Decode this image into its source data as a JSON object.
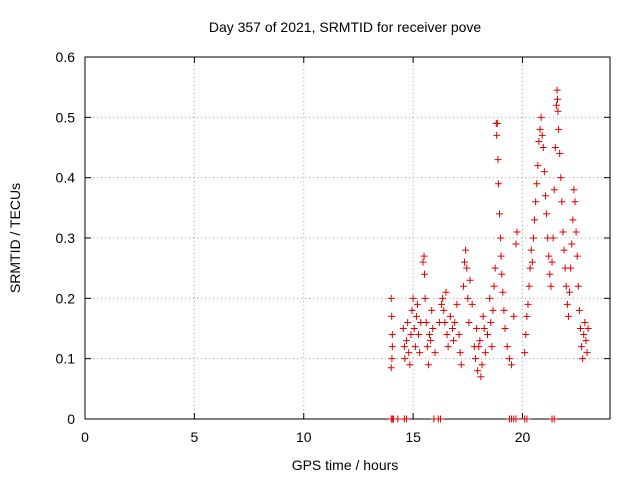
{
  "chart_data": {
    "type": "scatter",
    "title": "Day 357 of 2021, SRMTID for receiver pove",
    "xlabel": "GPS time / hours",
    "ylabel": "SRMTID / TECUs",
    "xlim": [
      0,
      24
    ],
    "ylim": [
      0,
      0.6
    ],
    "xticks": [
      0,
      5,
      10,
      15,
      20
    ],
    "xtick_labels": [
      "0",
      "5",
      "10",
      "15",
      "20"
    ],
    "yticks": [
      0,
      0.1,
      0.2,
      0.3,
      0.4,
      0.5,
      0.6
    ],
    "ytick_labels": [
      "0",
      "0.1",
      "0.2",
      "0.3",
      "0.4",
      "0.5",
      "0.6"
    ],
    "grid": true,
    "marker": "+",
    "marker_color": "#e00000",
    "series": [
      {
        "name": "SRMTID",
        "points": [
          [
            14.0,
            0.0
          ],
          [
            14.05,
            0.0
          ],
          [
            14.1,
            0.0
          ],
          [
            14.3,
            0.0
          ],
          [
            14.6,
            0.0
          ],
          [
            14.7,
            0.0
          ],
          [
            15.95,
            0.0
          ],
          [
            16.15,
            0.0
          ],
          [
            16.25,
            0.0
          ],
          [
            19.4,
            0.0
          ],
          [
            19.5,
            0.0
          ],
          [
            19.6,
            0.0
          ],
          [
            19.7,
            0.0
          ],
          [
            20.1,
            0.0
          ],
          [
            20.2,
            0.0
          ],
          [
            21.35,
            0.0
          ],
          [
            21.45,
            0.0
          ],
          [
            14.0,
            0.2
          ],
          [
            14.02,
            0.17
          ],
          [
            14.05,
            0.14
          ],
          [
            14.05,
            0.12
          ],
          [
            14.03,
            0.1
          ],
          [
            14.0,
            0.085
          ],
          [
            14.55,
            0.15
          ],
          [
            14.6,
            0.12
          ],
          [
            14.62,
            0.1
          ],
          [
            14.7,
            0.13
          ],
          [
            14.75,
            0.16
          ],
          [
            14.8,
            0.11
          ],
          [
            14.85,
            0.09
          ],
          [
            14.9,
            0.14
          ],
          [
            14.95,
            0.18
          ],
          [
            15.0,
            0.2
          ],
          [
            15.05,
            0.15
          ],
          [
            15.1,
            0.12
          ],
          [
            15.15,
            0.17
          ],
          [
            15.2,
            0.19
          ],
          [
            15.25,
            0.14
          ],
          [
            15.3,
            0.11
          ],
          [
            15.35,
            0.16
          ],
          [
            15.45,
            0.26
          ],
          [
            15.5,
            0.27
          ],
          [
            15.52,
            0.24
          ],
          [
            15.55,
            0.2
          ],
          [
            15.6,
            0.16
          ],
          [
            15.65,
            0.12
          ],
          [
            15.7,
            0.09
          ],
          [
            15.75,
            0.14
          ],
          [
            15.8,
            0.13
          ],
          [
            15.85,
            0.18
          ],
          [
            15.9,
            0.15
          ],
          [
            16.0,
            0.11
          ],
          [
            16.2,
            0.16
          ],
          [
            16.3,
            0.19
          ],
          [
            16.35,
            0.2
          ],
          [
            16.4,
            0.18
          ],
          [
            16.45,
            0.16
          ],
          [
            16.5,
            0.21
          ],
          [
            16.55,
            0.14
          ],
          [
            16.6,
            0.12
          ],
          [
            16.7,
            0.17
          ],
          [
            16.8,
            0.15
          ],
          [
            16.85,
            0.13
          ],
          [
            16.9,
            0.16
          ],
          [
            17.0,
            0.19
          ],
          [
            17.1,
            0.14
          ],
          [
            17.15,
            0.11
          ],
          [
            17.2,
            0.09
          ],
          [
            17.3,
            0.22
          ],
          [
            17.35,
            0.26
          ],
          [
            17.4,
            0.28
          ],
          [
            17.45,
            0.25
          ],
          [
            17.5,
            0.2
          ],
          [
            17.55,
            0.16
          ],
          [
            17.6,
            0.23
          ],
          [
            17.7,
            0.19
          ],
          [
            17.8,
            0.12
          ],
          [
            17.85,
            0.1
          ],
          [
            17.9,
            0.15
          ],
          [
            17.95,
            0.08
          ],
          [
            18.0,
            0.12
          ],
          [
            18.05,
            0.13
          ],
          [
            18.1,
            0.07
          ],
          [
            18.15,
            0.09
          ],
          [
            18.2,
            0.17
          ],
          [
            18.25,
            0.15
          ],
          [
            18.3,
            0.11
          ],
          [
            18.4,
            0.14
          ],
          [
            18.5,
            0.2
          ],
          [
            18.55,
            0.16
          ],
          [
            18.6,
            0.12
          ],
          [
            18.65,
            0.18
          ],
          [
            18.7,
            0.22
          ],
          [
            18.75,
            0.25
          ],
          [
            18.8,
            0.49
          ],
          [
            18.82,
            0.47
          ],
          [
            18.85,
            0.49
          ],
          [
            18.88,
            0.43
          ],
          [
            18.9,
            0.39
          ],
          [
            18.95,
            0.34
          ],
          [
            19.0,
            0.3
          ],
          [
            19.02,
            0.27
          ],
          [
            19.05,
            0.24
          ],
          [
            19.1,
            0.21
          ],
          [
            19.15,
            0.18
          ],
          [
            19.2,
            0.15
          ],
          [
            19.3,
            0.12
          ],
          [
            19.4,
            0.1
          ],
          [
            19.5,
            0.09
          ],
          [
            19.6,
            0.17
          ],
          [
            19.7,
            0.29
          ],
          [
            19.75,
            0.31
          ],
          [
            20.1,
            0.11
          ],
          [
            20.15,
            0.14
          ],
          [
            20.2,
            0.17
          ],
          [
            20.25,
            0.19
          ],
          [
            20.3,
            0.22
          ],
          [
            20.35,
            0.25
          ],
          [
            20.4,
            0.28
          ],
          [
            20.45,
            0.26
          ],
          [
            20.5,
            0.3
          ],
          [
            20.55,
            0.33
          ],
          [
            20.6,
            0.36
          ],
          [
            20.65,
            0.39
          ],
          [
            20.7,
            0.42
          ],
          [
            20.75,
            0.46
          ],
          [
            20.8,
            0.48
          ],
          [
            20.85,
            0.5
          ],
          [
            20.9,
            0.47
          ],
          [
            20.95,
            0.45
          ],
          [
            21.0,
            0.41
          ],
          [
            21.05,
            0.37
          ],
          [
            21.1,
            0.34
          ],
          [
            21.15,
            0.3
          ],
          [
            21.2,
            0.27
          ],
          [
            21.25,
            0.24
          ],
          [
            21.3,
            0.22
          ],
          [
            21.35,
            0.26
          ],
          [
            21.4,
            0.3
          ],
          [
            21.45,
            0.38
          ],
          [
            21.5,
            0.45
          ],
          [
            21.55,
            0.52
          ],
          [
            21.58,
            0.545
          ],
          [
            21.6,
            0.53
          ],
          [
            21.62,
            0.51
          ],
          [
            21.65,
            0.48
          ],
          [
            21.7,
            0.44
          ],
          [
            21.75,
            0.4
          ],
          [
            21.8,
            0.36
          ],
          [
            21.85,
            0.31
          ],
          [
            21.9,
            0.28
          ],
          [
            21.95,
            0.25
          ],
          [
            22.0,
            0.22
          ],
          [
            22.05,
            0.19
          ],
          [
            22.1,
            0.17
          ],
          [
            22.15,
            0.21
          ],
          [
            22.2,
            0.25
          ],
          [
            22.25,
            0.29
          ],
          [
            22.3,
            0.33
          ],
          [
            22.35,
            0.38
          ],
          [
            22.4,
            0.36
          ],
          [
            22.45,
            0.31
          ],
          [
            22.5,
            0.27
          ],
          [
            22.55,
            0.22
          ],
          [
            22.6,
            0.18
          ],
          [
            22.65,
            0.15
          ],
          [
            22.7,
            0.12
          ],
          [
            22.75,
            0.1
          ],
          [
            22.8,
            0.14
          ],
          [
            22.85,
            0.16
          ],
          [
            22.9,
            0.13
          ],
          [
            22.95,
            0.11
          ],
          [
            23.0,
            0.15
          ]
        ]
      }
    ]
  }
}
